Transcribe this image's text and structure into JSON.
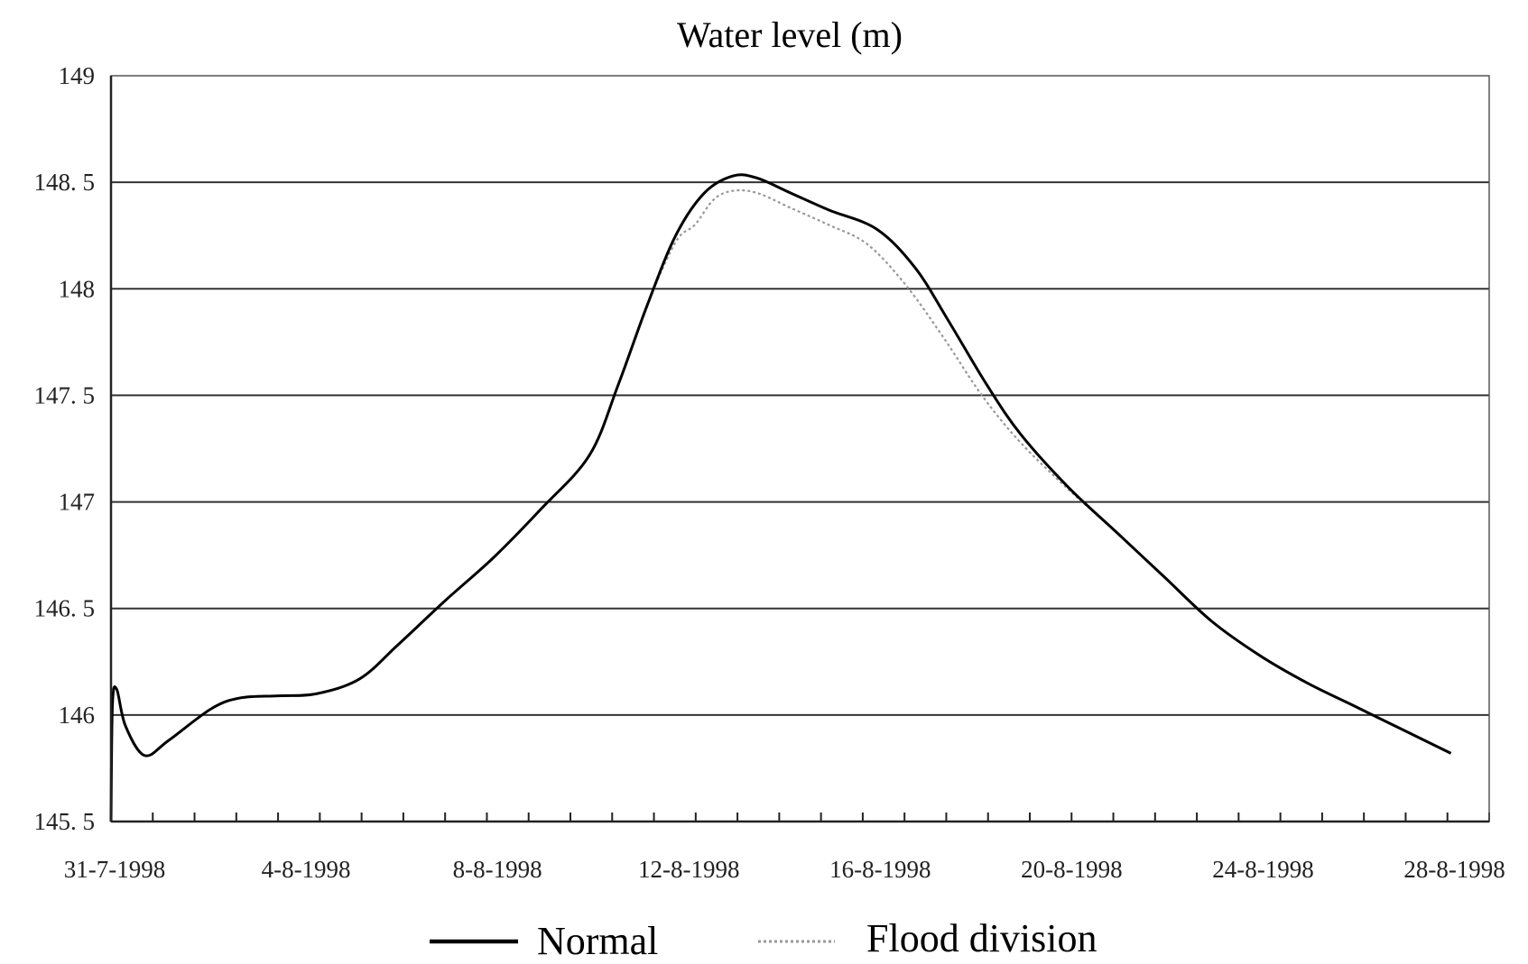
{
  "chart_data": {
    "type": "line",
    "title": "Water level (m)",
    "xlabel": "",
    "ylabel": "",
    "x_unit": "days since 31-7-1998",
    "xlim": [
      0,
      28.8
    ],
    "ylim": [
      145.5,
      149
    ],
    "yticks": [
      145.5,
      146,
      146.5,
      147,
      147.5,
      148,
      148.5,
      149
    ],
    "ytick_labels": [
      "145. 5",
      "146",
      "146. 5",
      "147",
      "147. 5",
      "148",
      "148. 5",
      "149"
    ],
    "xtick_labels": [
      "31-7-1998",
      "4-8-1998",
      "8-8-1998",
      "12-8-1998",
      "16-8-1998",
      "20-8-1998",
      "24-8-1998",
      "28-8-1998"
    ],
    "grid": true,
    "legend_position": "bottom-center",
    "series": [
      {
        "name": "Normal",
        "style": "solid",
        "color": "#000000",
        "x": [
          0,
          0.03,
          0.12,
          0.3,
          0.7,
          1.2,
          2.1,
          2.7,
          3.5,
          4.3,
          5.2,
          6.0,
          7.0,
          8.0,
          9.0,
          10.0,
          10.6,
          11.2,
          11.8,
          12.4,
          13.0,
          13.5,
          14.2,
          15.0,
          16.0,
          16.8,
          17.5,
          18.3,
          19.0,
          20.0,
          21.0,
          22.0,
          23.0,
          24.0,
          25.0,
          26.0,
          27.0,
          28.0
        ],
        "values": [
          145.5,
          146.05,
          146.12,
          145.95,
          145.81,
          145.88,
          146.03,
          146.08,
          146.09,
          146.1,
          146.17,
          146.33,
          146.54,
          146.74,
          146.97,
          147.22,
          147.55,
          147.92,
          148.25,
          148.45,
          148.53,
          148.52,
          148.45,
          148.37,
          148.28,
          148.1,
          147.85,
          147.55,
          147.32,
          147.07,
          146.86,
          146.65,
          146.44,
          146.28,
          146.15,
          146.04,
          145.93,
          145.82
        ]
      },
      {
        "name": "Flood division",
        "style": "dotted",
        "color": "#999999",
        "x": [
          0,
          0.03,
          0.12,
          0.3,
          0.7,
          1.2,
          2.1,
          2.7,
          3.5,
          4.3,
          5.2,
          6.0,
          7.0,
          8.0,
          9.0,
          10.0,
          10.6,
          11.2,
          11.8,
          12.2,
          12.6,
          13.0,
          13.5,
          14.2,
          15.0,
          15.8,
          16.6,
          17.4,
          18.2,
          19.0,
          20.0,
          21.0,
          22.0,
          23.0,
          24.0,
          25.0,
          26.0,
          27.0,
          28.0
        ],
        "values": [
          145.5,
          146.05,
          146.12,
          145.95,
          145.81,
          145.88,
          146.03,
          146.08,
          146.09,
          146.1,
          146.17,
          146.33,
          146.54,
          146.74,
          146.97,
          147.22,
          147.55,
          147.92,
          148.22,
          148.3,
          148.42,
          148.46,
          148.45,
          148.38,
          148.3,
          148.21,
          148.02,
          147.77,
          147.5,
          147.28,
          147.06,
          146.86,
          146.65,
          146.44,
          146.28,
          146.15,
          146.04,
          145.93,
          145.82
        ]
      }
    ]
  }
}
